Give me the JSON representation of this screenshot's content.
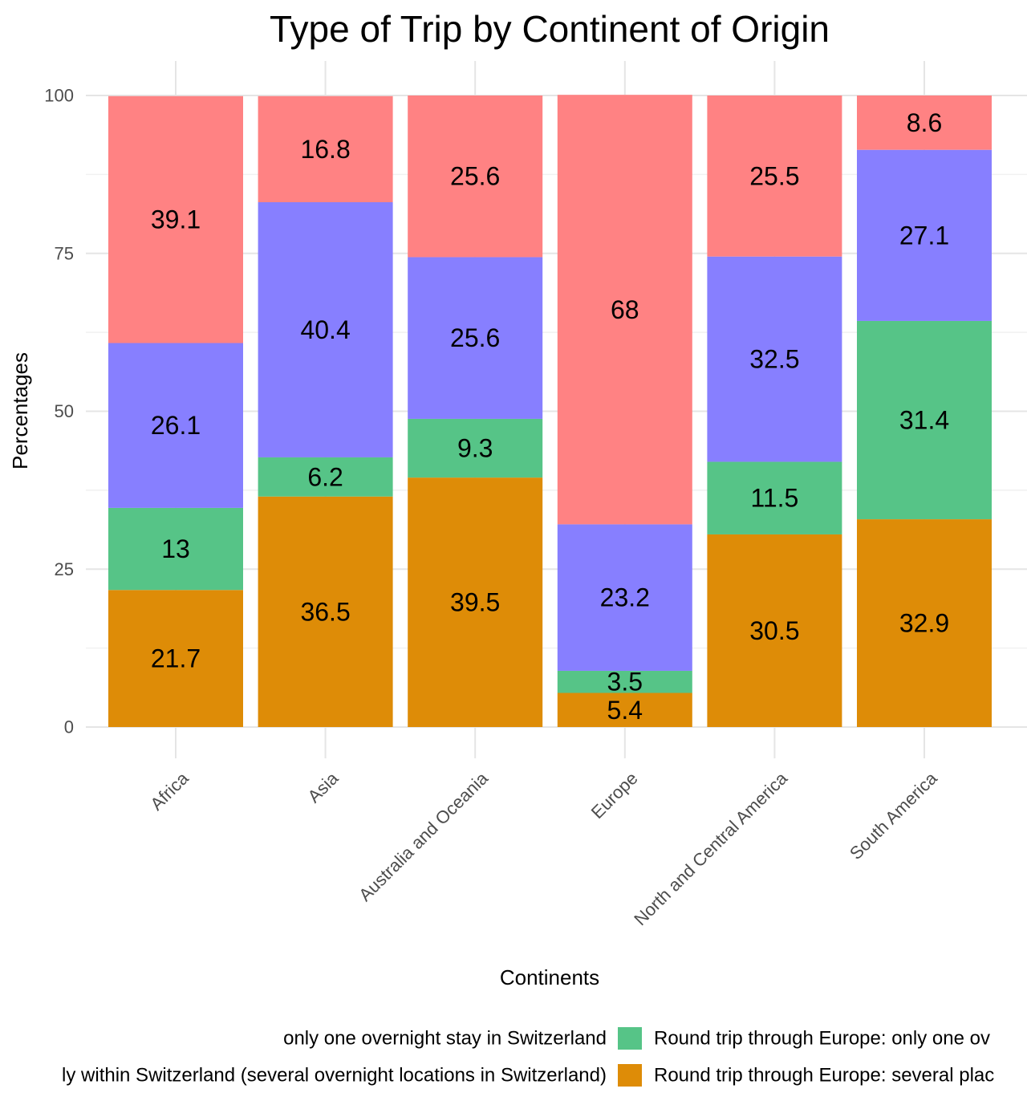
{
  "chart_data": {
    "type": "bar",
    "stacked": true,
    "title": "Type of Trip by Continent of Origin",
    "xlabel": "Continents",
    "ylabel": "Percentages",
    "ylim": [
      0,
      100
    ],
    "yticks": [
      0,
      25,
      50,
      75,
      100
    ],
    "grid": true,
    "legend_position": "bottom",
    "categories": [
      "Africa",
      "Asia",
      "Australia and Oceania",
      "Europe",
      "North and Central America",
      "South America"
    ],
    "series": [
      {
        "name": "Round trip through Europe: several places",
        "color": "#DE8C07",
        "values": [
          21.7,
          36.5,
          39.5,
          5.4,
          30.5,
          32.9
        ]
      },
      {
        "name": "Round trip through Europe: only one ov",
        "color": "#56C487",
        "values": [
          13,
          6.2,
          9.3,
          3.5,
          11.5,
          31.4
        ]
      },
      {
        "name": "ly within Switzerland (several overnight locations in Switzerland)",
        "color": "#877FFF",
        "values": [
          26.1,
          40.4,
          25.6,
          23.2,
          32.5,
          27.1
        ]
      },
      {
        "name": " only one overnight stay in Switzerland",
        "color": "#FF8283",
        "values": [
          39.1,
          16.8,
          25.6,
          68,
          25.5,
          8.6
        ]
      }
    ],
    "legend_entries": [
      {
        "label": " only one overnight stay in Switzerland",
        "color": "#FF8283",
        "swatch": false
      },
      {
        "label": "Round trip through Europe: only one ov",
        "color": "#56C487",
        "swatch": true
      },
      {
        "label": "ly within Switzerland (several overnight locations in Switzerland)",
        "color": "#877FFF",
        "swatch": false
      },
      {
        "label": "Round trip through Europe: several plac",
        "color": "#DE8C07",
        "swatch": true
      }
    ]
  }
}
